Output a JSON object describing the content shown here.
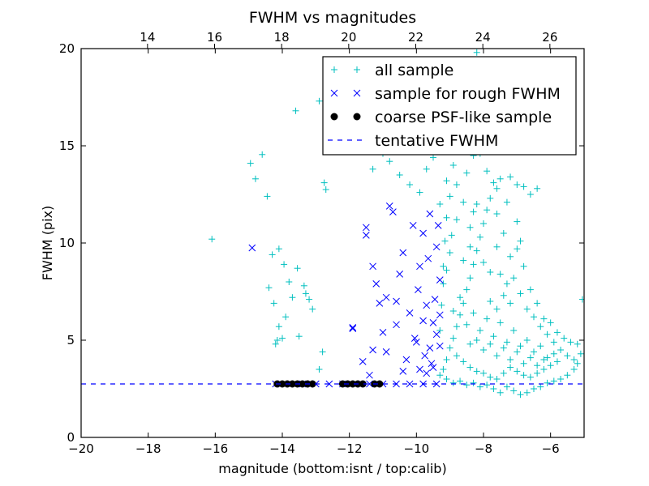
{
  "chart_data": {
    "type": "scatter",
    "title": "FWHM vs magnitudes",
    "xlabel": "magnitude (bottom:isnt / top:calib)",
    "ylabel": "FWHM (pix)",
    "xlim": [
      -20,
      -5
    ],
    "ylim": [
      0,
      20
    ],
    "xticks": [
      -20,
      -18,
      -16,
      -14,
      -12,
      -10,
      -8,
      -6
    ],
    "xtick_labels": [
      "−20",
      "−18",
      "−16",
      "−14",
      "−12",
      "−10",
      "−8",
      "−6"
    ],
    "yticks": [
      0,
      5,
      10,
      15,
      20
    ],
    "ytick_labels": [
      "0",
      "5",
      "10",
      "15",
      "20"
    ],
    "top_axis": {
      "label": "calib",
      "ticks": [
        14,
        16,
        18,
        20,
        22,
        24,
        26
      ],
      "tick_labels": [
        "14",
        "16",
        "18",
        "20",
        "22",
        "24",
        "26"
      ],
      "offset": 32.02
    },
    "grid": false,
    "legend": {
      "placement": "top-right",
      "entries": [
        {
          "label": "all sample",
          "marker": "+",
          "color": "#00bfbf"
        },
        {
          "label": "sample for rough FWHM",
          "marker": "x",
          "color": "#0000ff"
        },
        {
          "label": "coarse PSF-like sample",
          "marker": "o",
          "color": "#000000"
        },
        {
          "label": "tentative FWHM",
          "marker": "--",
          "color": "#0000ff"
        }
      ]
    },
    "tentative_fwhm": 2.75,
    "series": [
      {
        "name": "all sample",
        "marker": "+",
        "color": "#00bfbf",
        "points": [
          [
            -16.1,
            10.2
          ],
          [
            -14.95,
            14.1
          ],
          [
            -14.8,
            13.3
          ],
          [
            -14.6,
            14.55
          ],
          [
            -14.45,
            12.4
          ],
          [
            -14.4,
            7.7
          ],
          [
            -14.3,
            9.4
          ],
          [
            -14.25,
            6.9
          ],
          [
            -14.2,
            4.8
          ],
          [
            -14.1,
            9.7
          ],
          [
            -14.15,
            5.0
          ],
          [
            -14.1,
            5.7
          ],
          [
            -14.0,
            5.1
          ],
          [
            -13.95,
            8.9
          ],
          [
            -13.9,
            6.2
          ],
          [
            -13.8,
            8.0
          ],
          [
            -13.6,
            16.8
          ],
          [
            -13.55,
            8.7
          ],
          [
            -13.5,
            5.2
          ],
          [
            -13.3,
            7.4
          ],
          [
            -13.2,
            7.1
          ],
          [
            -13.1,
            6.6
          ],
          [
            -12.9,
            17.3
          ],
          [
            -12.75,
            13.1
          ],
          [
            -12.7,
            12.75
          ],
          [
            -12.8,
            4.4
          ],
          [
            -12.9,
            3.5
          ],
          [
            -13.7,
            7.2
          ],
          [
            -13.35,
            7.8
          ],
          [
            -12.4,
            16.2
          ],
          [
            -12.3,
            15.8
          ],
          [
            -11.9,
            15.3
          ],
          [
            -11.5,
            17.5
          ],
          [
            -11.3,
            13.8
          ],
          [
            -11.0,
            14.6
          ],
          [
            -10.8,
            14.2
          ],
          [
            -10.5,
            13.5
          ],
          [
            -10.2,
            13.0
          ],
          [
            -9.9,
            12.6
          ],
          [
            -9.7,
            13.8
          ],
          [
            -9.5,
            14.4
          ],
          [
            -9.3,
            14.8
          ],
          [
            -9.1,
            13.2
          ],
          [
            -8.9,
            14.0
          ],
          [
            -8.7,
            15.2
          ],
          [
            -8.5,
            13.6
          ],
          [
            -8.3,
            14.5
          ],
          [
            -8.2,
            19.8
          ],
          [
            -8.1,
            14.6
          ],
          [
            -7.9,
            13.7
          ],
          [
            -7.7,
            13.1
          ],
          [
            -7.6,
            12.8
          ],
          [
            -7.5,
            13.3
          ],
          [
            -7.2,
            13.4
          ],
          [
            -7.0,
            13.0
          ],
          [
            -6.8,
            12.9
          ],
          [
            -6.6,
            12.5
          ],
          [
            -6.4,
            12.8
          ],
          [
            -7.0,
            11.1
          ],
          [
            -6.8,
            8.8
          ],
          [
            -6.6,
            7.6
          ],
          [
            -6.4,
            6.9
          ],
          [
            -6.2,
            6.1
          ],
          [
            -6.0,
            5.9
          ],
          [
            -5.8,
            5.4
          ],
          [
            -5.6,
            5.1
          ],
          [
            -5.4,
            4.9
          ],
          [
            -5.2,
            4.8
          ],
          [
            -5.05,
            7.1
          ],
          [
            -5.1,
            4.3
          ],
          [
            -5.2,
            3.8
          ],
          [
            -5.3,
            3.5
          ],
          [
            -5.5,
            3.2
          ],
          [
            -5.7,
            3.0
          ],
          [
            -5.9,
            2.9
          ],
          [
            -6.1,
            2.8
          ],
          [
            -6.3,
            2.6
          ],
          [
            -6.5,
            2.5
          ],
          [
            -6.7,
            2.3
          ],
          [
            -6.9,
            2.2
          ],
          [
            -7.1,
            2.4
          ],
          [
            -7.3,
            2.6
          ],
          [
            -7.5,
            2.3
          ],
          [
            -7.7,
            2.5
          ],
          [
            -7.9,
            2.7
          ],
          [
            -8.1,
            2.6
          ],
          [
            -8.3,
            2.8
          ],
          [
            -8.5,
            2.7
          ],
          [
            -8.7,
            2.9
          ],
          [
            -8.9,
            2.8
          ],
          [
            -9.1,
            3.0
          ],
          [
            -9.3,
            3.2
          ],
          [
            -9.2,
            3.5
          ],
          [
            -9.1,
            4.0
          ],
          [
            -9.0,
            4.6
          ],
          [
            -8.9,
            5.1
          ],
          [
            -8.8,
            5.7
          ],
          [
            -8.7,
            6.3
          ],
          [
            -8.6,
            6.9
          ],
          [
            -8.5,
            7.6
          ],
          [
            -8.4,
            8.2
          ],
          [
            -8.3,
            8.9
          ],
          [
            -8.2,
            9.6
          ],
          [
            -8.1,
            10.3
          ],
          [
            -8.0,
            11.0
          ],
          [
            -7.9,
            11.7
          ],
          [
            -7.8,
            12.3
          ],
          [
            -9.2,
            7.9
          ],
          [
            -9.1,
            8.6
          ],
          [
            -9.0,
            9.5
          ],
          [
            -8.95,
            10.4
          ],
          [
            -8.8,
            11.2
          ],
          [
            -8.6,
            12.1
          ],
          [
            -8.4,
            10.8
          ],
          [
            -8.2,
            12.0
          ],
          [
            -7.6,
            9.8
          ],
          [
            -7.4,
            10.5
          ],
          [
            -7.2,
            9.3
          ],
          [
            -7.0,
            9.7
          ],
          [
            -6.9,
            10.1
          ],
          [
            -7.5,
            8.4
          ],
          [
            -7.3,
            7.9
          ],
          [
            -7.1,
            8.2
          ],
          [
            -6.9,
            7.4
          ],
          [
            -6.7,
            6.6
          ],
          [
            -6.5,
            6.2
          ],
          [
            -6.3,
            5.7
          ],
          [
            -6.1,
            5.3
          ],
          [
            -5.9,
            4.9
          ],
          [
            -5.7,
            4.5
          ],
          [
            -5.5,
            4.2
          ],
          [
            -5.3,
            4.0
          ],
          [
            -8.8,
            4.2
          ],
          [
            -8.6,
            3.9
          ],
          [
            -8.4,
            3.6
          ],
          [
            -8.2,
            3.4
          ],
          [
            -8.0,
            3.3
          ],
          [
            -7.8,
            3.1
          ],
          [
            -7.6,
            3.0
          ],
          [
            -7.4,
            3.3
          ],
          [
            -7.2,
            3.6
          ],
          [
            -7.0,
            3.4
          ],
          [
            -6.8,
            3.2
          ],
          [
            -6.6,
            3.1
          ],
          [
            -6.4,
            3.3
          ],
          [
            -6.2,
            3.5
          ],
          [
            -6.0,
            3.7
          ],
          [
            -5.8,
            3.9
          ],
          [
            -8.9,
            6.5
          ],
          [
            -8.7,
            7.2
          ],
          [
            -8.5,
            5.8
          ],
          [
            -8.3,
            6.4
          ],
          [
            -8.1,
            5.5
          ],
          [
            -7.9,
            6.1
          ],
          [
            -7.7,
            5.2
          ],
          [
            -7.5,
            5.9
          ],
          [
            -7.3,
            4.9
          ],
          [
            -7.1,
            5.5
          ],
          [
            -6.9,
            4.7
          ],
          [
            -6.7,
            5.0
          ],
          [
            -6.5,
            4.4
          ],
          [
            -6.3,
            4.7
          ],
          [
            -6.1,
            4.1
          ],
          [
            -5.9,
            4.3
          ],
          [
            -9.3,
            5.5
          ],
          [
            -9.25,
            6.8
          ],
          [
            -9.2,
            8.8
          ],
          [
            -9.15,
            10.1
          ],
          [
            -9.1,
            11.3
          ],
          [
            -8.0,
            4.5
          ],
          [
            -7.8,
            4.8
          ],
          [
            -7.6,
            4.2
          ],
          [
            -7.4,
            4.6
          ],
          [
            -7.2,
            4.0
          ],
          [
            -7.0,
            4.4
          ],
          [
            -6.8,
            3.8
          ],
          [
            -6.6,
            4.1
          ],
          [
            -6.4,
            3.7
          ],
          [
            -6.2,
            4.0
          ],
          [
            -8.4,
            4.8
          ],
          [
            -8.2,
            5.0
          ],
          [
            -7.8,
            7.0
          ],
          [
            -7.6,
            6.6
          ],
          [
            -7.4,
            7.3
          ],
          [
            -7.2,
            6.9
          ],
          [
            -8.6,
            9.1
          ],
          [
            -8.4,
            9.8
          ],
          [
            -8.0,
            9.0
          ],
          [
            -7.8,
            8.5
          ],
          [
            -7.6,
            11.5
          ],
          [
            -8.8,
            13.0
          ],
          [
            -9.0,
            12.4
          ],
          [
            -9.3,
            12.0
          ],
          [
            -8.3,
            11.6
          ],
          [
            -7.3,
            12.1
          ]
        ]
      },
      {
        "name": "sample for rough FWHM",
        "marker": "x",
        "color": "#0000ff",
        "points": [
          [
            -14.9,
            9.75
          ],
          [
            -14.2,
            2.75
          ],
          [
            -13.8,
            2.75
          ],
          [
            -13.4,
            2.75
          ],
          [
            -13.0,
            2.75
          ],
          [
            -12.6,
            2.75
          ],
          [
            -12.2,
            2.75
          ],
          [
            -11.8,
            2.75
          ],
          [
            -11.4,
            2.75
          ],
          [
            -11.0,
            2.75
          ],
          [
            -10.6,
            2.75
          ],
          [
            -10.2,
            2.75
          ],
          [
            -9.8,
            2.75
          ],
          [
            -9.4,
            2.75
          ],
          [
            -11.9,
            5.6
          ],
          [
            -11.9,
            5.65
          ],
          [
            -11.6,
            3.9
          ],
          [
            -11.5,
            10.8
          ],
          [
            -11.5,
            10.4
          ],
          [
            -11.3,
            4.5
          ],
          [
            -11.3,
            8.8
          ],
          [
            -11.2,
            7.9
          ],
          [
            -11.1,
            6.9
          ],
          [
            -11.0,
            5.4
          ],
          [
            -10.9,
            4.4
          ],
          [
            -10.9,
            7.2
          ],
          [
            -10.8,
            11.9
          ],
          [
            -10.7,
            11.6
          ],
          [
            -10.6,
            7.0
          ],
          [
            -10.5,
            8.4
          ],
          [
            -10.4,
            9.5
          ],
          [
            -10.3,
            4.0
          ],
          [
            -10.2,
            6.4
          ],
          [
            -10.1,
            10.9
          ],
          [
            -10.05,
            5.1
          ],
          [
            -9.95,
            7.6
          ],
          [
            -9.9,
            8.8
          ],
          [
            -9.8,
            10.5
          ],
          [
            -9.75,
            4.2
          ],
          [
            -9.7,
            6.8
          ],
          [
            -9.65,
            9.2
          ],
          [
            -9.6,
            11.5
          ],
          [
            -9.55,
            3.8
          ],
          [
            -9.5,
            5.9
          ],
          [
            -9.45,
            7.1
          ],
          [
            -9.4,
            9.8
          ],
          [
            -9.35,
            10.9
          ],
          [
            -9.3,
            4.7
          ],
          [
            -9.3,
            6.3
          ],
          [
            -9.3,
            8.1
          ],
          [
            -9.7,
            3.3
          ],
          [
            -9.6,
            4.6
          ],
          [
            -9.5,
            3.6
          ],
          [
            -9.4,
            5.3
          ],
          [
            -10.4,
            3.4
          ],
          [
            -10.0,
            4.9
          ],
          [
            -9.9,
            3.5
          ],
          [
            -9.8,
            6.0
          ],
          [
            -10.6,
            5.8
          ],
          [
            -11.4,
            3.2
          ]
        ]
      },
      {
        "name": "coarse PSF-like sample",
        "marker": "o",
        "color": "#000000",
        "points": [
          [
            -14.15,
            2.75
          ],
          [
            -14.0,
            2.75
          ],
          [
            -13.85,
            2.75
          ],
          [
            -13.7,
            2.75
          ],
          [
            -13.55,
            2.75
          ],
          [
            -13.4,
            2.75
          ],
          [
            -13.25,
            2.75
          ],
          [
            -13.1,
            2.75
          ],
          [
            -12.2,
            2.75
          ],
          [
            -12.05,
            2.75
          ],
          [
            -11.9,
            2.75
          ],
          [
            -11.75,
            2.75
          ],
          [
            -11.6,
            2.75
          ],
          [
            -11.25,
            2.75
          ],
          [
            -11.1,
            2.75
          ]
        ]
      }
    ]
  }
}
